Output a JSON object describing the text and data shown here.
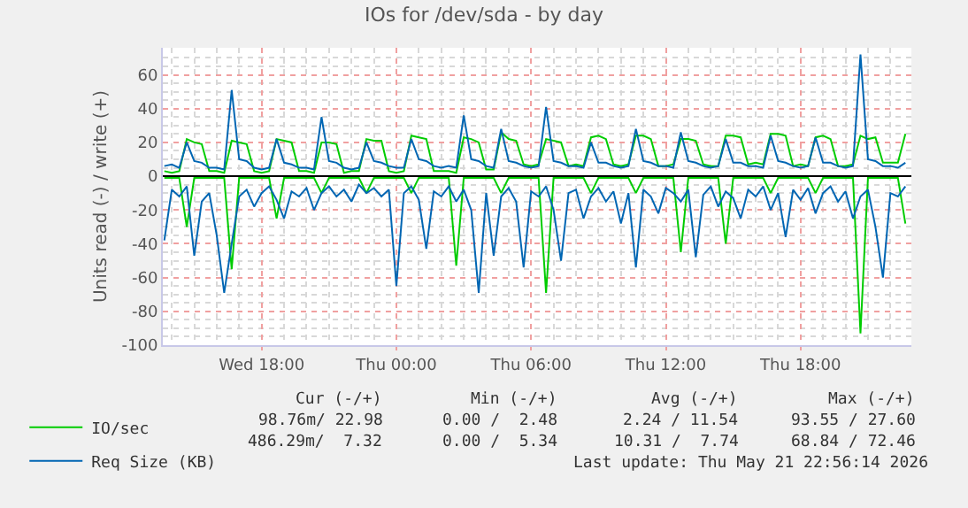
{
  "chart_data": {
    "type": "line",
    "title": "IOs for /dev/sda - by day",
    "ylabel": "Units read (-) / write (+)",
    "x": [
      "2026-05-20T13:40",
      "2026-05-20T14:00",
      "2026-05-20T14:20",
      "2026-05-20T14:40",
      "2026-05-20T15:00",
      "2026-05-20T15:20",
      "2026-05-20T15:40",
      "2026-05-20T16:00",
      "2026-05-20T16:20",
      "2026-05-20T16:40",
      "2026-05-20T17:00",
      "2026-05-20T17:20",
      "2026-05-20T17:40",
      "2026-05-20T18:00",
      "2026-05-20T18:20",
      "2026-05-20T18:40",
      "2026-05-20T19:00",
      "2026-05-20T19:20",
      "2026-05-20T19:40",
      "2026-05-20T20:00",
      "2026-05-20T20:20",
      "2026-05-20T20:40",
      "2026-05-20T21:00",
      "2026-05-20T21:20",
      "2026-05-20T21:40",
      "2026-05-20T22:00",
      "2026-05-20T22:20",
      "2026-05-20T22:40",
      "2026-05-20T23:00",
      "2026-05-20T23:20",
      "2026-05-20T23:40",
      "2026-05-21T00:00",
      "2026-05-21T00:20",
      "2026-05-21T00:40",
      "2026-05-21T01:00",
      "2026-05-21T01:20",
      "2026-05-21T01:40",
      "2026-05-21T02:00",
      "2026-05-21T02:20",
      "2026-05-21T02:40",
      "2026-05-21T03:00",
      "2026-05-21T03:20",
      "2026-05-21T03:40",
      "2026-05-21T04:00",
      "2026-05-21T04:20",
      "2026-05-21T04:40",
      "2026-05-21T05:00",
      "2026-05-21T05:20",
      "2026-05-21T05:40",
      "2026-05-21T06:00",
      "2026-05-21T06:20",
      "2026-05-21T06:40",
      "2026-05-21T07:00",
      "2026-05-21T07:20",
      "2026-05-21T07:40",
      "2026-05-21T08:00",
      "2026-05-21T08:20",
      "2026-05-21T08:40",
      "2026-05-21T09:00",
      "2026-05-21T09:20",
      "2026-05-21T09:40",
      "2026-05-21T10:00",
      "2026-05-21T10:20",
      "2026-05-21T10:40",
      "2026-05-21T11:00",
      "2026-05-21T11:20",
      "2026-05-21T11:40",
      "2026-05-21T12:00",
      "2026-05-21T12:20",
      "2026-05-21T12:40",
      "2026-05-21T13:00",
      "2026-05-21T13:20",
      "2026-05-21T13:40",
      "2026-05-21T14:00",
      "2026-05-21T14:20",
      "2026-05-21T14:40",
      "2026-05-21T15:00",
      "2026-05-21T15:20",
      "2026-05-21T15:40",
      "2026-05-21T16:00",
      "2026-05-21T16:20",
      "2026-05-21T16:40",
      "2026-05-21T17:00",
      "2026-05-21T17:20",
      "2026-05-21T17:40",
      "2026-05-21T18:00",
      "2026-05-21T18:20",
      "2026-05-21T18:40",
      "2026-05-21T19:00",
      "2026-05-21T19:20",
      "2026-05-21T19:40",
      "2026-05-21T20:00",
      "2026-05-21T20:20",
      "2026-05-21T20:40",
      "2026-05-21T21:00",
      "2026-05-21T21:20",
      "2026-05-21T21:40",
      "2026-05-21T22:00",
      "2026-05-21T22:20",
      "2026-05-21T22:40"
    ],
    "series": [
      {
        "name": "IO/sec",
        "color": "#00cc00",
        "values": [
          3,
          2,
          3,
          22,
          20,
          19,
          3,
          3,
          2,
          21,
          20,
          19,
          3,
          2,
          3,
          22,
          21,
          20,
          3,
          3,
          2,
          20,
          20,
          19,
          2,
          3,
          3,
          22,
          21,
          21,
          3,
          2,
          3,
          24,
          23,
          22,
          3,
          3,
          3,
          2,
          23,
          22,
          20,
          4,
          4,
          26,
          22,
          21,
          7,
          6,
          7,
          22,
          21,
          20,
          6,
          7,
          6,
          23,
          24,
          22,
          7,
          6,
          7,
          24,
          24,
          22,
          6,
          6,
          7,
          22,
          22,
          21,
          7,
          6,
          6,
          24,
          24,
          23,
          7,
          8,
          7,
          25,
          25,
          24,
          6,
          7,
          6,
          23,
          24,
          22,
          6,
          6,
          7,
          24,
          22,
          23,
          8,
          8,
          8,
          25
        ]
      },
      {
        "name": "Req Size (KB)",
        "color": "#0066b3",
        "values": [
          6,
          7,
          5,
          20,
          9,
          8,
          5,
          5,
          4,
          51,
          10,
          9,
          5,
          4,
          5,
          22,
          8,
          7,
          5,
          5,
          4,
          35,
          9,
          8,
          5,
          4,
          5,
          20,
          9,
          8,
          6,
          5,
          5,
          22,
          10,
          9,
          6,
          5,
          6,
          5,
          36,
          10,
          9,
          6,
          5,
          28,
          9,
          8,
          6,
          5,
          6,
          41,
          9,
          8,
          6,
          6,
          5,
          20,
          8,
          8,
          6,
          5,
          6,
          28,
          9,
          8,
          6,
          6,
          5,
          26,
          9,
          8,
          6,
          5,
          6,
          22,
          8,
          8,
          6,
          6,
          5,
          24,
          9,
          8,
          6,
          5,
          6,
          23,
          8,
          8,
          6,
          5,
          6,
          72,
          10,
          9,
          6,
          6,
          5,
          8
        ]
      },
      {
        "color": "#00cc00",
        "values": [
          -1,
          -1,
          -1,
          -30,
          -1,
          -1,
          -1,
          -1,
          -1,
          -55,
          -1,
          -1,
          -1,
          -1,
          -1,
          -25,
          -1,
          -1,
          -1,
          -1,
          -1,
          -10,
          -1,
          -1,
          -1,
          -1,
          -1,
          -10,
          -1,
          -1,
          -1,
          -1,
          -1,
          -10,
          -1,
          -1,
          -1,
          -1,
          -1,
          -53,
          -1,
          -1,
          -1,
          -1,
          -1,
          -10,
          -1,
          -1,
          -1,
          -1,
          -1,
          -69,
          -1,
          -1,
          -1,
          -1,
          -1,
          -10,
          -1,
          -1,
          -1,
          -1,
          -1,
          -10,
          -1,
          -1,
          -1,
          -1,
          -1,
          -45,
          -1,
          -1,
          -1,
          -1,
          -1,
          -40,
          -1,
          -1,
          -1,
          -1,
          -1,
          -10,
          -1,
          -1,
          -1,
          -1,
          -1,
          -10,
          -1,
          -1,
          -1,
          -1,
          -1,
          -93,
          -1,
          -1,
          -1,
          -1,
          -1,
          -28
        ]
      },
      {
        "color": "#0066b3",
        "values": [
          -38,
          -8,
          -12,
          -6,
          -47,
          -15,
          -10,
          -35,
          -69,
          -40,
          -12,
          -8,
          -18,
          -10,
          -6,
          -14,
          -25,
          -9,
          -12,
          -7,
          -20,
          -10,
          -6,
          -12,
          -8,
          -15,
          -5,
          -10,
          -7,
          -12,
          -8,
          -65,
          -10,
          -6,
          -14,
          -43,
          -9,
          -12,
          -6,
          -15,
          -8,
          -20,
          -69,
          -10,
          -47,
          -12,
          -7,
          -15,
          -54,
          -9,
          -12,
          -6,
          -20,
          -50,
          -10,
          -8,
          -25,
          -12,
          -7,
          -15,
          -9,
          -28,
          -10,
          -54,
          -8,
          -12,
          -22,
          -7,
          -10,
          -15,
          -8,
          -48,
          -11,
          -6,
          -18,
          -9,
          -13,
          -25,
          -8,
          -12,
          -6,
          -20,
          -10,
          -36,
          -8,
          -14,
          -7,
          -22,
          -10,
          -6,
          -15,
          -9,
          -25,
          -12,
          -8,
          -30,
          -60,
          -10,
          -12,
          -6
        ]
      }
    ],
    "xlim": [
      "2026-05-20T13:36",
      "2026-05-21T22:56"
    ],
    "xticks": [
      {
        "value": "2026-05-20T18:00",
        "label": "Wed 18:00"
      },
      {
        "value": "2026-05-21T00:00",
        "label": "Thu 00:00"
      },
      {
        "value": "2026-05-21T06:00",
        "label": "Thu 06:00"
      },
      {
        "value": "2026-05-21T12:00",
        "label": "Thu 12:00"
      },
      {
        "value": "2026-05-21T18:00",
        "label": "Thu 18:00"
      }
    ],
    "ylim": [
      -100,
      76
    ],
    "yticks": [
      -100,
      -80,
      -60,
      -40,
      -20,
      0,
      20,
      40,
      60
    ],
    "grid": true,
    "legend": "bottom left",
    "marker": "none",
    "line_style": "solid",
    "annotations": [
      "Cur (-/+)",
      "Min (-/+)",
      "Avg (-/+)",
      "Max (-/+)",
      "98.76m/ 22.98",
      "0.00 /  2.48",
      "2.24 / 11.54",
      "93.55 / 27.60",
      "486.29m/  7.32",
      "0.00 /  5.34",
      "10.31 /  7.74",
      "68.84 / 72.46",
      "Last update: Thu May 21 22:56:14 2026"
    ]
  }
}
